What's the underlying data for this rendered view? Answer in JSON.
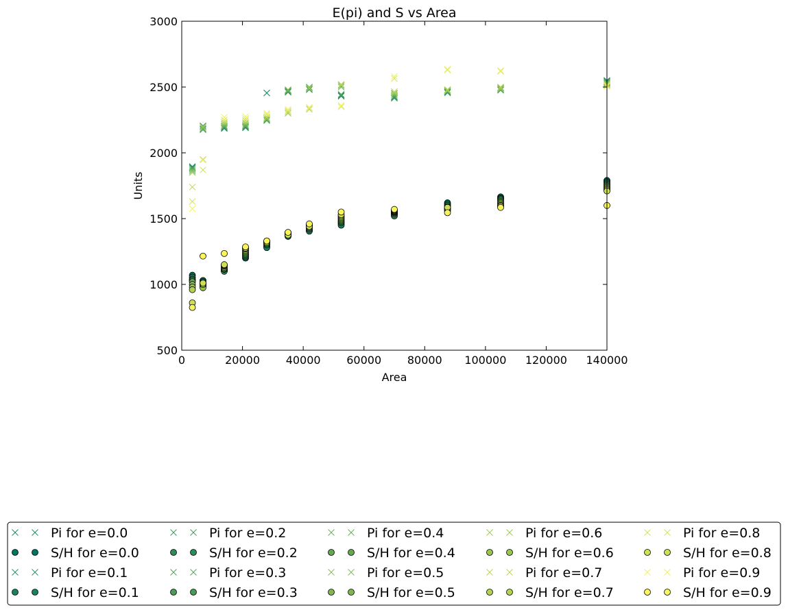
{
  "chart_data": {
    "type": "scatter",
    "title": "E(pi) and S vs Area",
    "xlabel": "Area",
    "ylabel": "Units",
    "xlim": [
      0,
      140000
    ],
    "ylim": [
      500,
      3000
    ],
    "xticks": [
      "0",
      "20000",
      "40000",
      "60000",
      "80000",
      "100000",
      "120000",
      "140000"
    ],
    "yticks": [
      "500",
      "1000",
      "1500",
      "2000",
      "2500",
      "3000"
    ],
    "grid": false,
    "legend_position": "bottom",
    "series": [
      {
        "name": "Pi for e=0.0",
        "marker": "x",
        "color": "#1b8a6b",
        "points": [
          [
            3500,
            1895
          ],
          [
            7000,
            2205
          ],
          [
            14000,
            2185
          ],
          [
            21000,
            2190
          ],
          [
            28000,
            2455
          ],
          [
            35000,
            2465
          ],
          [
            42000,
            2490
          ],
          [
            52500,
            2435
          ],
          [
            70000,
            2415
          ],
          [
            87500,
            2460
          ],
          [
            105000,
            2485
          ],
          [
            140000,
            2550
          ]
        ]
      },
      {
        "name": "S/H for e=0.0",
        "marker": "o",
        "color": "#00755e",
        "points": [
          [
            3500,
            1070
          ],
          [
            7000,
            1030
          ],
          [
            14000,
            1110
          ],
          [
            21000,
            1200
          ],
          [
            28000,
            1290
          ],
          [
            35000,
            1370
          ],
          [
            42000,
            1410
          ],
          [
            52500,
            1460
          ],
          [
            70000,
            1540
          ],
          [
            87500,
            1620
          ],
          [
            105000,
            1665
          ],
          [
            140000,
            1790
          ]
        ]
      },
      {
        "name": "Pi for e=0.1",
        "marker": "x",
        "color": "#2a9066",
        "points": [
          [
            3500,
            1890
          ],
          [
            7000,
            2195
          ],
          [
            14000,
            2190
          ],
          [
            21000,
            2195
          ],
          [
            28000,
            2455
          ],
          [
            35000,
            2470
          ],
          [
            42000,
            2495
          ],
          [
            52500,
            2430
          ],
          [
            70000,
            2425
          ],
          [
            87500,
            2465
          ],
          [
            105000,
            2480
          ],
          [
            140000,
            2545
          ]
        ]
      },
      {
        "name": "S/H for e=0.1",
        "marker": "o",
        "color": "#1a8060",
        "points": [
          [
            3500,
            1055
          ],
          [
            7000,
            1020
          ],
          [
            14000,
            1105
          ],
          [
            21000,
            1210
          ],
          [
            28000,
            1280
          ],
          [
            35000,
            1365
          ],
          [
            42000,
            1405
          ],
          [
            52500,
            1450
          ],
          [
            70000,
            1530
          ],
          [
            87500,
            1610
          ],
          [
            105000,
            1655
          ],
          [
            140000,
            1780
          ]
        ]
      },
      {
        "name": "Pi for e=0.2",
        "marker": "x",
        "color": "#3f9a62",
        "points": [
          [
            3500,
            1885
          ],
          [
            7000,
            2180
          ],
          [
            14000,
            2195
          ],
          [
            21000,
            2200
          ],
          [
            28000,
            2250
          ],
          [
            35000,
            2460
          ],
          [
            42000,
            2480
          ],
          [
            52500,
            2440
          ],
          [
            70000,
            2420
          ],
          [
            87500,
            2470
          ],
          [
            105000,
            2490
          ],
          [
            140000,
            2540
          ]
        ]
      },
      {
        "name": "S/H for e=0.2",
        "marker": "o",
        "color": "#2e8b57",
        "points": [
          [
            3500,
            1040
          ],
          [
            7000,
            1010
          ],
          [
            14000,
            1100
          ],
          [
            21000,
            1220
          ],
          [
            28000,
            1300
          ],
          [
            35000,
            1380
          ],
          [
            42000,
            1420
          ],
          [
            52500,
            1470
          ],
          [
            70000,
            1520
          ],
          [
            87500,
            1600
          ],
          [
            105000,
            1650
          ],
          [
            140000,
            1770
          ]
        ]
      },
      {
        "name": "Pi for e=0.3",
        "marker": "x",
        "color": "#55a55e",
        "points": [
          [
            3500,
            1880
          ],
          [
            7000,
            2175
          ],
          [
            14000,
            2200
          ],
          [
            21000,
            2205
          ],
          [
            28000,
            2245
          ],
          [
            35000,
            2470
          ],
          [
            42000,
            2485
          ],
          [
            52500,
            2445
          ],
          [
            70000,
            2430
          ],
          [
            87500,
            2455
          ],
          [
            105000,
            2475
          ],
          [
            140000,
            2535
          ]
        ]
      },
      {
        "name": "S/H for e=0.3",
        "marker": "o",
        "color": "#4a9a55",
        "points": [
          [
            3500,
            1030
          ],
          [
            7000,
            1000
          ],
          [
            14000,
            1115
          ],
          [
            21000,
            1230
          ],
          [
            28000,
            1310
          ],
          [
            35000,
            1375
          ],
          [
            42000,
            1430
          ],
          [
            52500,
            1480
          ],
          [
            70000,
            1535
          ],
          [
            87500,
            1590
          ],
          [
            105000,
            1640
          ],
          [
            140000,
            1760
          ]
        ]
      },
      {
        "name": "Pi for e=0.4",
        "marker": "x",
        "color": "#6cb15a",
        "points": [
          [
            3500,
            1870
          ],
          [
            7000,
            2185
          ],
          [
            14000,
            2205
          ],
          [
            21000,
            2210
          ],
          [
            28000,
            2255
          ],
          [
            35000,
            2475
          ],
          [
            42000,
            2500
          ],
          [
            52500,
            2500
          ],
          [
            70000,
            2440
          ],
          [
            87500,
            2475
          ],
          [
            105000,
            2495
          ],
          [
            140000,
            2530
          ]
        ]
      },
      {
        "name": "S/H for e=0.4",
        "marker": "o",
        "color": "#66a852",
        "points": [
          [
            3500,
            1020
          ],
          [
            7000,
            990
          ],
          [
            14000,
            1120
          ],
          [
            21000,
            1240
          ],
          [
            28000,
            1320
          ],
          [
            35000,
            1385
          ],
          [
            42000,
            1440
          ],
          [
            52500,
            1490
          ],
          [
            70000,
            1545
          ],
          [
            87500,
            1580
          ],
          [
            105000,
            1630
          ],
          [
            140000,
            1750
          ]
        ]
      },
      {
        "name": "Pi for e=0.5",
        "marker": "x",
        "color": "#85bd58",
        "points": [
          [
            3500,
            1860
          ],
          [
            7000,
            2195
          ],
          [
            14000,
            2215
          ],
          [
            21000,
            2220
          ],
          [
            28000,
            2260
          ],
          [
            35000,
            2480
          ],
          [
            42000,
            2495
          ],
          [
            52500,
            2510
          ],
          [
            70000,
            2450
          ],
          [
            87500,
            2480
          ],
          [
            105000,
            2490
          ],
          [
            140000,
            2525
          ]
        ]
      },
      {
        "name": "S/H for e=0.5",
        "marker": "o",
        "color": "#80b650",
        "points": [
          [
            3500,
            1000
          ],
          [
            7000,
            985
          ],
          [
            14000,
            1130
          ],
          [
            21000,
            1250
          ],
          [
            28000,
            1325
          ],
          [
            35000,
            1390
          ],
          [
            42000,
            1450
          ],
          [
            52500,
            1500
          ],
          [
            70000,
            1550
          ],
          [
            87500,
            1570
          ],
          [
            105000,
            1620
          ],
          [
            140000,
            1740
          ]
        ]
      },
      {
        "name": "Pi for e=0.6",
        "marker": "x",
        "color": "#9fc957",
        "points": [
          [
            3500,
            1850
          ],
          [
            7000,
            2200
          ],
          [
            14000,
            2225
          ],
          [
            21000,
            2230
          ],
          [
            28000,
            2265
          ],
          [
            35000,
            2300
          ],
          [
            42000,
            2490
          ],
          [
            52500,
            2515
          ],
          [
            70000,
            2455
          ],
          [
            87500,
            2470
          ],
          [
            105000,
            2485
          ],
          [
            140000,
            2520
          ]
        ]
      },
      {
        "name": "S/H for e=0.6",
        "marker": "o",
        "color": "#9ac54f",
        "points": [
          [
            3500,
            980
          ],
          [
            7000,
            975
          ],
          [
            14000,
            1140
          ],
          [
            21000,
            1260
          ],
          [
            28000,
            1330
          ],
          [
            35000,
            1395
          ],
          [
            42000,
            1455
          ],
          [
            52500,
            1510
          ],
          [
            70000,
            1555
          ],
          [
            87500,
            1560
          ],
          [
            105000,
            1610
          ],
          [
            140000,
            1730
          ]
        ]
      },
      {
        "name": "Pi for e=0.7",
        "marker": "x",
        "color": "#bad657",
        "points": [
          [
            3500,
            1740
          ],
          [
            7000,
            1950
          ],
          [
            14000,
            2235
          ],
          [
            21000,
            2245
          ],
          [
            28000,
            2275
          ],
          [
            35000,
            2310
          ],
          [
            42000,
            2330
          ],
          [
            52500,
            2520
          ],
          [
            70000,
            2465
          ],
          [
            87500,
            2480
          ],
          [
            105000,
            2500
          ],
          [
            140000,
            2515
          ]
        ]
      },
      {
        "name": "S/H for e=0.7",
        "marker": "o",
        "color": "#b3d350",
        "points": [
          [
            3500,
            960
          ],
          [
            7000,
            1000
          ],
          [
            14000,
            1145
          ],
          [
            21000,
            1270
          ],
          [
            28000,
            1325
          ],
          [
            35000,
            1385
          ],
          [
            42000,
            1445
          ],
          [
            52500,
            1520
          ],
          [
            70000,
            1560
          ],
          [
            87500,
            1575
          ],
          [
            105000,
            1600
          ],
          [
            140000,
            1720
          ]
        ]
      },
      {
        "name": "Pi for e=0.8",
        "marker": "x",
        "color": "#d4e35a",
        "points": [
          [
            3500,
            1630
          ],
          [
            7000,
            1870
          ],
          [
            14000,
            2250
          ],
          [
            21000,
            2260
          ],
          [
            28000,
            2290
          ],
          [
            35000,
            2320
          ],
          [
            42000,
            2340
          ],
          [
            52500,
            2350
          ],
          [
            70000,
            2565
          ],
          [
            87500,
            2630
          ],
          [
            105000,
            2620
          ],
          [
            140000,
            2510
          ]
        ]
      },
      {
        "name": "S/H for e=0.8",
        "marker": "o",
        "color": "#cddf55",
        "points": [
          [
            3500,
            860
          ],
          [
            7000,
            1010
          ],
          [
            14000,
            1150
          ],
          [
            21000,
            1275
          ],
          [
            28000,
            1320
          ],
          [
            35000,
            1375
          ],
          [
            42000,
            1440
          ],
          [
            52500,
            1530
          ],
          [
            70000,
            1565
          ],
          [
            87500,
            1585
          ],
          [
            105000,
            1595
          ],
          [
            140000,
            1710
          ]
        ]
      },
      {
        "name": "Pi for e=0.9",
        "marker": "x",
        "color": "#f0f060",
        "points": [
          [
            3500,
            1575
          ],
          [
            7000,
            1945
          ],
          [
            14000,
            2270
          ],
          [
            21000,
            2275
          ],
          [
            28000,
            2300
          ],
          [
            35000,
            2330
          ],
          [
            42000,
            2345
          ],
          [
            52500,
            2360
          ],
          [
            70000,
            2580
          ],
          [
            87500,
            2635
          ],
          [
            105000,
            2625
          ],
          [
            140000,
            2505
          ]
        ]
      },
      {
        "name": "S/H for e=0.9",
        "marker": "o",
        "color": "#f7f55a",
        "points": [
          [
            3500,
            825
          ],
          [
            7000,
            1215
          ],
          [
            14000,
            1235
          ],
          [
            21000,
            1285
          ],
          [
            28000,
            1330
          ],
          [
            35000,
            1395
          ],
          [
            42000,
            1460
          ],
          [
            52500,
            1550
          ],
          [
            70000,
            1570
          ],
          [
            87500,
            1545
          ],
          [
            105000,
            1585
          ],
          [
            140000,
            1600
          ]
        ]
      }
    ]
  }
}
